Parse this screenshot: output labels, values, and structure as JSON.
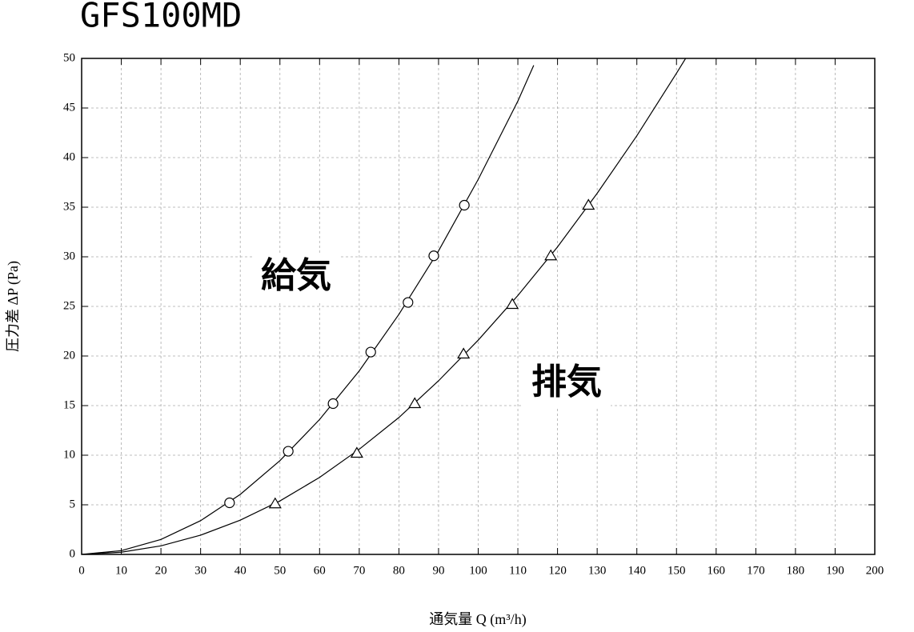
{
  "chart_data": {
    "type": "line",
    "title": "GFS100MD",
    "x_label": "通気量 Q (m³/h)",
    "y_label": "圧力差 ΔP (Pa)",
    "xlim": [
      0,
      200
    ],
    "ylim": [
      0,
      50
    ],
    "xticks": [
      0,
      10,
      20,
      30,
      40,
      50,
      60,
      70,
      80,
      90,
      100,
      110,
      120,
      130,
      140,
      150,
      160,
      170,
      180,
      190,
      200
    ],
    "yticks": [
      0,
      5,
      10,
      15,
      20,
      25,
      30,
      35,
      40,
      45,
      50
    ],
    "grid": true,
    "series": [
      {
        "name": "給気",
        "color": "#000000",
        "marker": "circle",
        "x": [
          37.3,
          52.1,
          63.4,
          72.9,
          82.3,
          88.8,
          96.5
        ],
        "values": [
          5.2,
          10.4,
          15.2,
          20.4,
          25.4,
          30.1,
          35.2
        ],
        "curve": {
          "x": [
            0,
            10,
            20,
            30,
            40,
            50,
            60,
            70,
            80,
            90,
            100,
            110,
            114
          ],
          "values": [
            0,
            0.38,
            1.51,
            3.4,
            6.05,
            9.45,
            13.6,
            18.5,
            24.2,
            30.6,
            37.8,
            45.7,
            49.3
          ]
        }
      },
      {
        "name": "排気",
        "color": "#000000",
        "marker": "triangle",
        "x": [
          48.8,
          69.4,
          84.0,
          96.3,
          108.6,
          118.3,
          127.8
        ],
        "values": [
          5.1,
          10.2,
          15.2,
          20.2,
          25.2,
          30.1,
          35.2
        ],
        "curve": {
          "x": [
            0,
            10,
            20,
            30,
            40,
            50,
            60,
            70,
            80,
            90,
            100,
            110,
            120,
            130,
            140,
            150,
            152.3
          ],
          "values": [
            0,
            0.22,
            0.86,
            1.94,
            3.45,
            5.39,
            7.76,
            10.6,
            13.8,
            17.5,
            21.6,
            26.1,
            31.0,
            36.4,
            42.2,
            48.5,
            50.0
          ]
        }
      }
    ]
  }
}
